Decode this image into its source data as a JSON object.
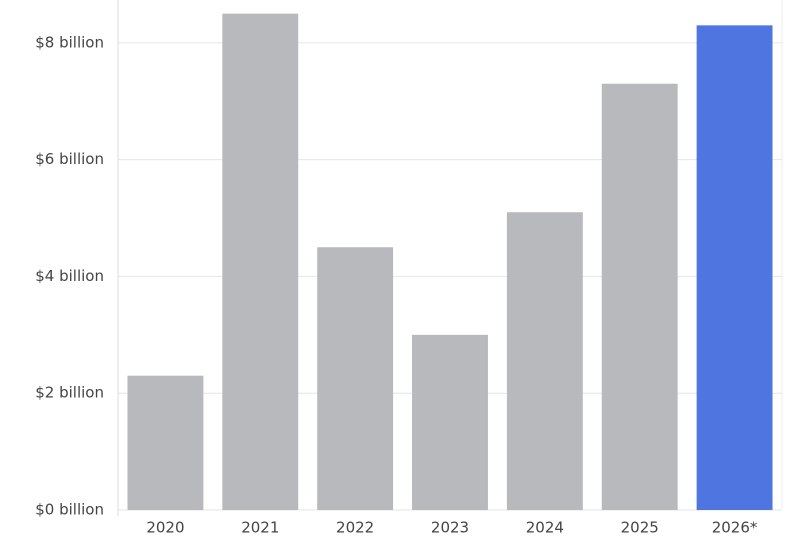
{
  "chart_data": {
    "type": "bar",
    "categories": [
      "2020",
      "2021",
      "2022",
      "2023",
      "2024",
      "2025",
      "2026*"
    ],
    "values": [
      2.3,
      8.5,
      4.5,
      3.0,
      5.1,
      7.3,
      8.3
    ],
    "colors": [
      "#b7b9bd",
      "#b7b9bd",
      "#b7b9bd",
      "#b7b9bd",
      "#b7b9bd",
      "#b7b9bd",
      "#4f76e0"
    ],
    "ylim": [
      0,
      8.7
    ],
    "yticks": [
      {
        "value": 0,
        "label": "$0 billion"
      },
      {
        "value": 2,
        "label": "$2 billion"
      },
      {
        "value": 4,
        "label": "$4 billion"
      },
      {
        "value": 6,
        "label": "$6 billion"
      },
      {
        "value": 8,
        "label": "$8 billion"
      }
    ],
    "grid": true
  }
}
